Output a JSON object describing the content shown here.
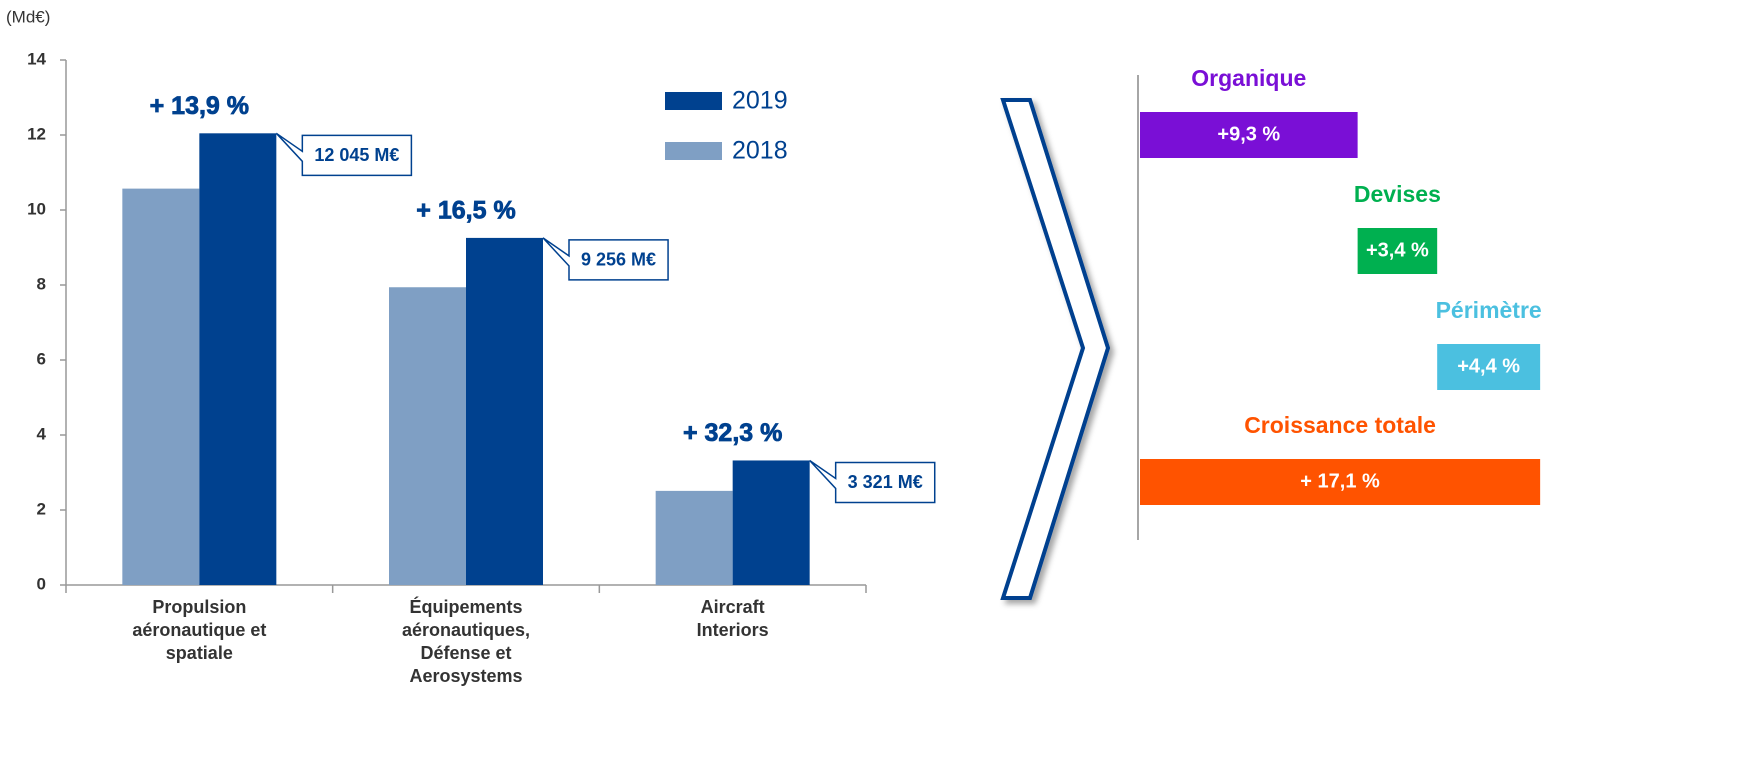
{
  "chart_data": [
    {
      "type": "bar",
      "ylabel": "(Md€)",
      "categories": [
        "Propulsion\naéronautique et\nspatiale",
        "Équipements\naéronautiques,\nDéfense et\nAerosystems",
        "Aircraft\nInteriors"
      ],
      "series": [
        {
          "name": "2018",
          "color": "#7f9fc4",
          "values": [
            10.57,
            7.94,
            2.51
          ]
        },
        {
          "name": "2019",
          "color": "#00418f",
          "values": [
            12.045,
            9.256,
            3.321
          ],
          "value_labels": [
            "12 045 M€",
            "9 256 M€",
            "3 321 M€"
          ]
        }
      ],
      "growth_labels": [
        "+ 13,9 %",
        "+ 16,5 %",
        "+ 32,3 %"
      ],
      "ylim": [
        0,
        14
      ],
      "yticks": [
        0,
        2,
        4,
        6,
        8,
        10,
        12,
        14
      ],
      "legend": "upper right"
    },
    {
      "type": "waterfall",
      "categories": [
        "Organique",
        "Devises",
        "Périmètre",
        "Croissance totale"
      ],
      "values": [
        9.3,
        3.4,
        4.4,
        17.1
      ],
      "value_labels": [
        "+9,3 %",
        "+3,4 %",
        "+4,4 %",
        "+ 17,1 %"
      ],
      "colors": [
        "#7a0fd6",
        "#00b050",
        "#4bc0e0",
        "#ff5300"
      ],
      "total": [
        false,
        false,
        false,
        true
      ]
    }
  ]
}
